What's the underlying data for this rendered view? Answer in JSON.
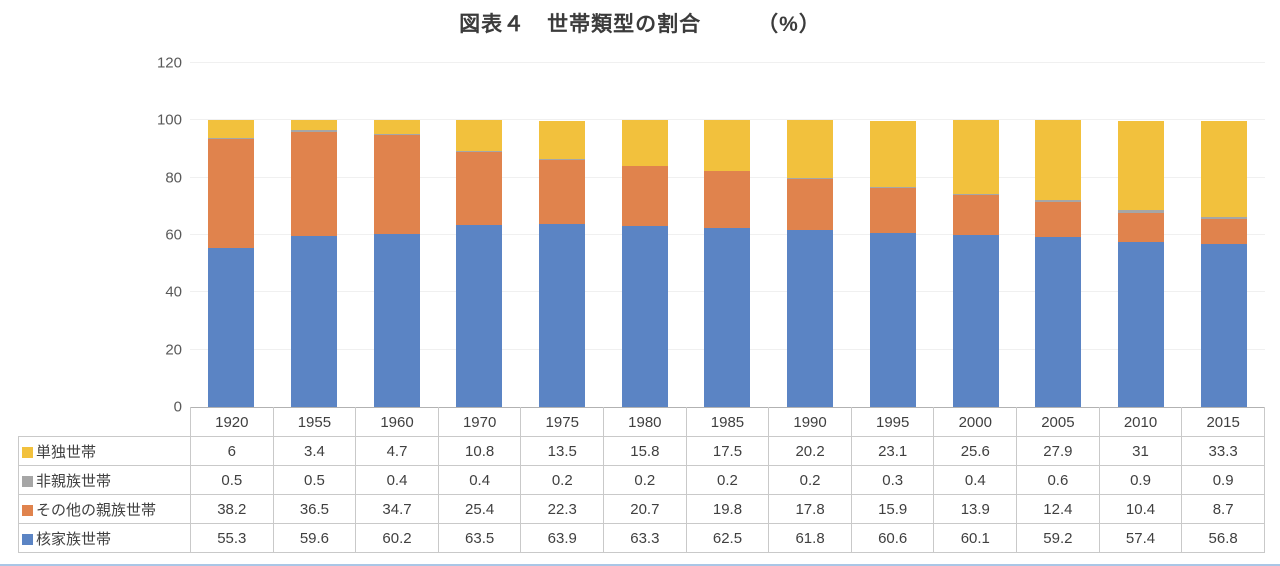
{
  "title": "図表４　世帯類型の割合",
  "unit_label": "（%）",
  "chart_data": {
    "type": "bar",
    "stacked": true,
    "title": "図表４　世帯類型の割合（%）",
    "categories": [
      "1920",
      "1955",
      "1960",
      "1970",
      "1975",
      "1980",
      "1985",
      "1990",
      "1995",
      "2000",
      "2005",
      "2010",
      "2015"
    ],
    "series": [
      {
        "name": "核家族世帯",
        "color": "#5B84C4",
        "values": [
          55.3,
          59.6,
          60.2,
          63.5,
          63.9,
          63.3,
          62.5,
          61.8,
          60.6,
          60.1,
          59.2,
          57.4,
          56.8
        ]
      },
      {
        "name": "その他の親族世帯",
        "color": "#E0834D",
        "values": [
          38.2,
          36.5,
          34.7,
          25.4,
          22.3,
          20.7,
          19.8,
          17.8,
          15.9,
          13.9,
          12.4,
          10.4,
          8.7
        ]
      },
      {
        "name": "非親族世帯",
        "color": "#A6A6A6",
        "values": [
          0.5,
          0.5,
          0.4,
          0.4,
          0.2,
          0.2,
          0.2,
          0.2,
          0.3,
          0.4,
          0.6,
          0.9,
          0.9
        ]
      },
      {
        "name": "単独世帯",
        "color": "#F2C13D",
        "values": [
          6,
          3.4,
          4.7,
          10.8,
          13.5,
          15.8,
          17.5,
          20.2,
          23.1,
          25.6,
          27.9,
          31,
          33.3
        ]
      }
    ],
    "ylim": [
      0,
      120
    ],
    "yticks": [
      0,
      20,
      40,
      60,
      80,
      100,
      120
    ],
    "grid": true,
    "legend_position": "data-table-left",
    "table_row_order_top_to_bottom": [
      "単独世帯",
      "非親族世帯",
      "その他の親族世帯",
      "核家族世帯"
    ]
  }
}
